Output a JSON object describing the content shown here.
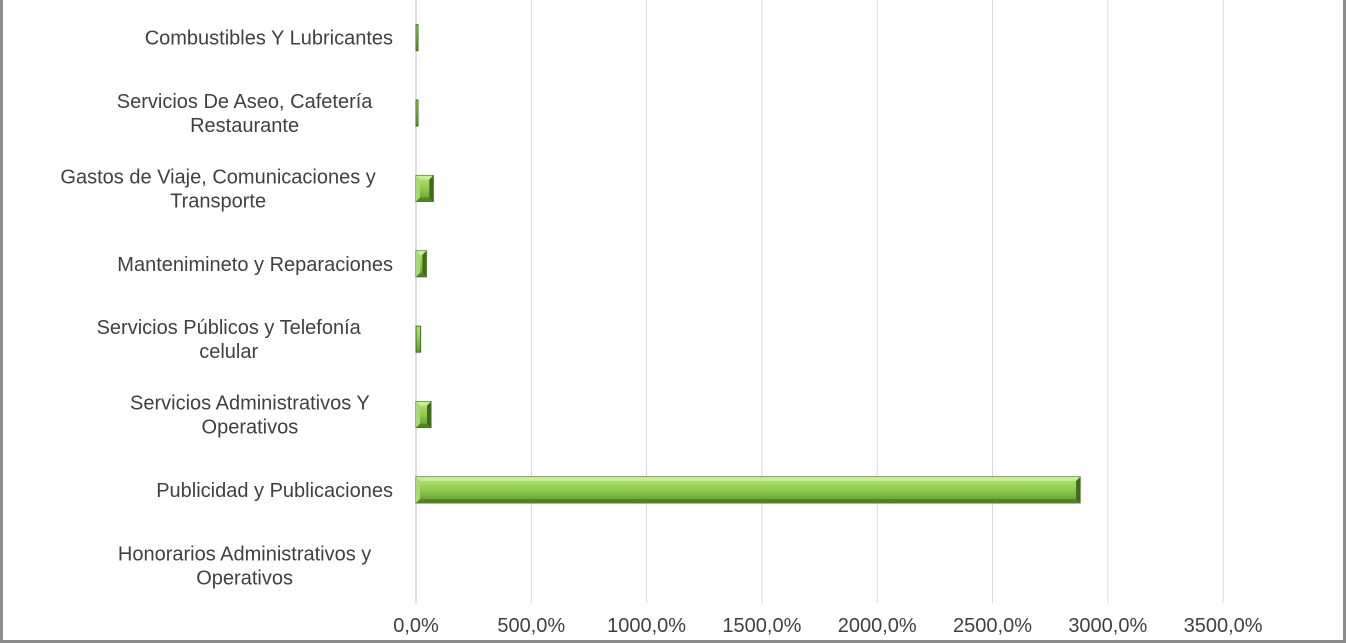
{
  "chart_data": {
    "type": "bar",
    "orientation": "horizontal",
    "title": "",
    "xlabel": "",
    "ylabel": "",
    "categories": [
      [
        "Combustibles Y Lubricantes"
      ],
      [
        "Servicios De Aseo, Cafetería",
        "Restaurante"
      ],
      [
        "Gastos de Viaje, Comunicaciones y",
        "Transporte"
      ],
      [
        "Mantenimineto y Reparaciones"
      ],
      [
        "Servicios Públicos  y Telefonía",
        "celular"
      ],
      [
        "Servicios Administrativos Y",
        "Operativos"
      ],
      [
        "Publicidad y Publicaciones"
      ],
      [
        "Honorarios Administrativos y",
        "Operativos"
      ]
    ],
    "values": [
      5,
      8,
      75,
      45,
      20,
      65,
      2880,
      0
    ],
    "xlim": [
      0,
      3500
    ],
    "x_ticks": [
      0,
      500,
      1000,
      1500,
      2000,
      2500,
      3000,
      3500
    ],
    "x_tick_labels": [
      "0,0%",
      "500,0%",
      "1000,0%",
      "1500,0%",
      "2000,0%",
      "2500,0%",
      "3000,0%",
      "3500,0%"
    ],
    "grid": "vertical",
    "legend": "none",
    "colors": {
      "bar_light": "#a6d66a",
      "bar_mid": "#7fbf3f",
      "bar_dark": "#3f6b1a",
      "grid": "#d9d9d9",
      "text": "#404040"
    }
  }
}
